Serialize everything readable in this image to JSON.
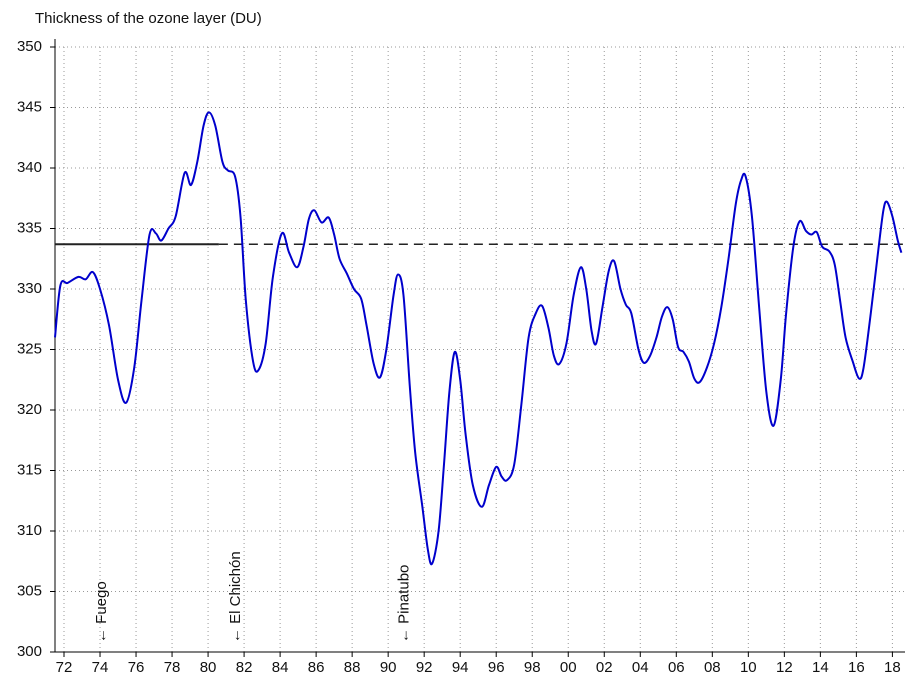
{
  "chart_data": {
    "type": "line",
    "title": "Thickness of the ozone layer (DU)",
    "x": [
      1971.5,
      1971.8,
      1972.2,
      1972.8,
      1973.2,
      1973.6,
      1974.0,
      1974.5,
      1975.0,
      1975.45,
      1975.9,
      1976.3,
      1976.75,
      1977.1,
      1977.4,
      1977.8,
      1978.2,
      1978.7,
      1979.05,
      1979.4,
      1979.75,
      1980.05,
      1980.4,
      1980.8,
      1981.1,
      1981.5,
      1981.8,
      1982.1,
      1982.5,
      1982.8,
      1983.2,
      1983.6,
      1984.1,
      1984.5,
      1984.95,
      1985.3,
      1985.6,
      1985.9,
      1986.3,
      1986.7,
      1987.0,
      1987.3,
      1987.7,
      1988.1,
      1988.5,
      1988.8,
      1989.2,
      1989.55,
      1989.9,
      1990.3,
      1990.55,
      1990.85,
      1991.2,
      1991.5,
      1991.9,
      1992.2,
      1992.44,
      1992.8,
      1993.1,
      1993.4,
      1993.7,
      1994.0,
      1994.3,
      1994.7,
      1995.2,
      1995.6,
      1996.0,
      1996.3,
      1996.6,
      1997.0,
      1997.4,
      1997.8,
      1998.2,
      1998.55,
      1998.9,
      1999.2,
      1999.5,
      1999.9,
      2000.3,
      2000.7,
      2001.0,
      2001.3,
      2001.55,
      2001.9,
      2002.25,
      2002.55,
      2002.9,
      2003.2,
      2003.5,
      2003.9,
      2004.2,
      2004.55,
      2004.9,
      2005.2,
      2005.5,
      2005.8,
      2006.1,
      2006.4,
      2006.7,
      2007.0,
      2007.3,
      2007.7,
      2008.1,
      2008.5,
      2008.9,
      2009.3,
      2009.6,
      2009.85,
      2010.2,
      2010.6,
      2011.0,
      2011.4,
      2011.8,
      2012.1,
      2012.5,
      2012.85,
      2013.2,
      2013.5,
      2013.8,
      2014.1,
      2014.5,
      2014.8,
      2015.1,
      2015.4,
      2015.8,
      2016.15,
      2016.4,
      2016.8,
      2017.2,
      2017.5,
      2017.7,
      2018.0,
      2018.3,
      2018.5
    ],
    "series": [
      {
        "color": "#0000cc",
        "values": [
          326,
          330.3,
          330.5,
          331,
          330.8,
          331.4,
          330,
          327,
          322.5,
          320.6,
          323.5,
          329,
          334.5,
          334.6,
          334,
          335,
          336,
          339.6,
          338.6,
          340.5,
          343.5,
          344.6,
          343.5,
          340.5,
          339.8,
          339.3,
          336,
          329,
          324,
          323.3,
          325.5,
          331,
          334.6,
          333,
          331.8,
          333.5,
          335.8,
          336.5,
          335.5,
          335.9,
          334.5,
          332.5,
          331.3,
          330,
          329.2,
          327,
          323.8,
          322.7,
          325,
          329.5,
          331.2,
          329.5,
          322,
          316.5,
          312,
          308.5,
          307.3,
          310,
          315.5,
          321.5,
          324.8,
          322.5,
          318,
          313.8,
          312,
          313.8,
          315.3,
          314.5,
          314.2,
          315.5,
          320.5,
          326,
          328,
          328.6,
          326.8,
          324.5,
          323.8,
          325.5,
          329.5,
          331.8,
          330,
          326.5,
          325.5,
          328.5,
          331.5,
          332.3,
          330,
          328.7,
          328,
          325,
          323.9,
          324.5,
          326,
          327.7,
          328.5,
          327.5,
          325.2,
          324.8,
          324,
          322.6,
          322.3,
          323.5,
          325.5,
          328.5,
          332.5,
          337,
          339,
          339.3,
          336,
          328.5,
          321.5,
          318.7,
          322.5,
          328,
          333.5,
          335.6,
          334.8,
          334.5,
          334.7,
          333.5,
          333.1,
          332,
          329,
          326,
          324,
          322.6,
          323.5,
          328,
          333,
          336.5,
          337.2,
          336,
          334,
          333
        ]
      }
    ],
    "reference_line": {
      "value": 333.7,
      "solid_until": 1980.6,
      "color": "#222222"
    },
    "annotations": [
      {
        "text": "← Fuego",
        "x": 1974.1
      },
      {
        "text": "← El Chichón",
        "x": 1981.55
      },
      {
        "text": "← Pinatubo",
        "x": 1990.9
      }
    ],
    "xlim": [
      1971.5,
      2018.7
    ],
    "xticks": [
      {
        "value": 1972,
        "label": "72"
      },
      {
        "value": 1974,
        "label": "74"
      },
      {
        "value": 1976,
        "label": "76"
      },
      {
        "value": 1978,
        "label": "78"
      },
      {
        "value": 1980,
        "label": "80"
      },
      {
        "value": 1982,
        "label": "82"
      },
      {
        "value": 1984,
        "label": "84"
      },
      {
        "value": 1986,
        "label": "86"
      },
      {
        "value": 1988,
        "label": "88"
      },
      {
        "value": 1990,
        "label": "90"
      },
      {
        "value": 1992,
        "label": "92"
      },
      {
        "value": 1994,
        "label": "94"
      },
      {
        "value": 1996,
        "label": "96"
      },
      {
        "value": 1998,
        "label": "98"
      },
      {
        "value": 2000,
        "label": "00"
      },
      {
        "value": 2002,
        "label": "02"
      },
      {
        "value": 2004,
        "label": "04"
      },
      {
        "value": 2006,
        "label": "06"
      },
      {
        "value": 2008,
        "label": "08"
      },
      {
        "value": 2010,
        "label": "10"
      },
      {
        "value": 2012,
        "label": "12"
      },
      {
        "value": 2014,
        "label": "14"
      },
      {
        "value": 2016,
        "label": "16"
      },
      {
        "value": 2018,
        "label": "18"
      }
    ],
    "ylim": [
      300,
      350
    ],
    "yticks": [
      300,
      305,
      310,
      315,
      320,
      325,
      330,
      335,
      340,
      345,
      350
    ],
    "grid": true
  }
}
